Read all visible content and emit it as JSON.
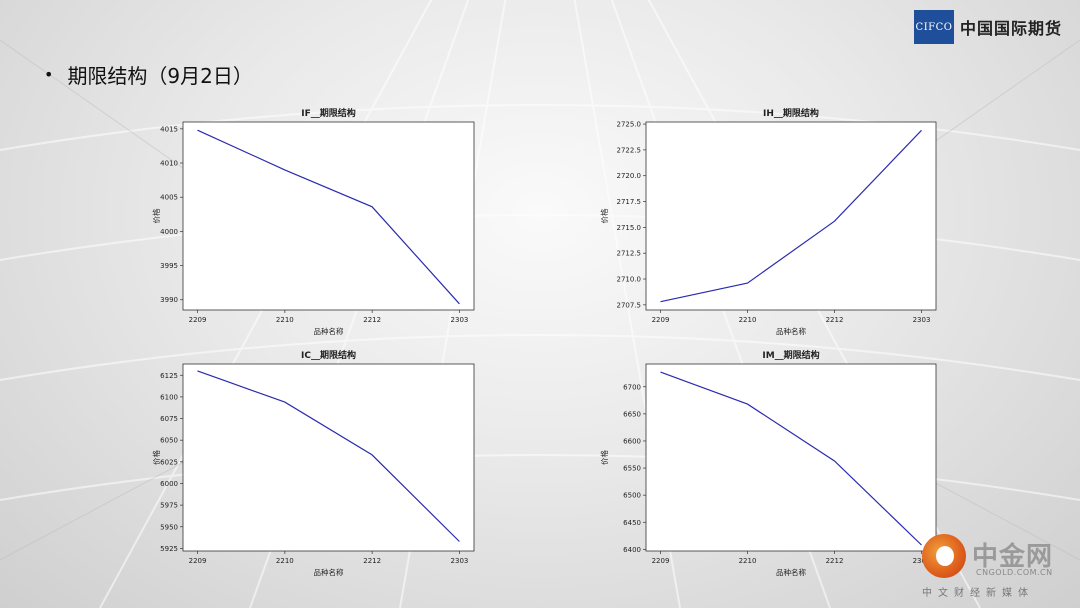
{
  "logo": {
    "box_text": "CIFCO",
    "name": "中国国际期货",
    "color": "#1f4e9a"
  },
  "slide": {
    "bullet": "•",
    "title": "期限结构（9月2日）"
  },
  "watermark": {
    "name": "中金网",
    "domain": "CNGOLD.COM.CN",
    "tagline": "中文财经新媒体"
  },
  "chart_data": [
    {
      "type": "line",
      "title": "IF__期限结构",
      "xlabel": "品种名称",
      "ylabel": "价格",
      "categories": [
        "2209",
        "2210",
        "2212",
        "2303"
      ],
      "series": [
        {
          "values": [
            4014.8,
            4009.0,
            4003.6,
            3989.4
          ]
        }
      ],
      "ylim": [
        3988.5,
        4016
      ],
      "yticks": [
        3990,
        3995,
        4000,
        4005,
        4010,
        4015
      ],
      "line_color": "#2b2bb0"
    },
    {
      "type": "line",
      "title": "IH__期限结构",
      "xlabel": "品种名称",
      "ylabel": "价格",
      "categories": [
        "2209",
        "2210",
        "2212",
        "2303"
      ],
      "series": [
        {
          "values": [
            2707.8,
            2709.6,
            2715.6,
            2724.4
          ]
        }
      ],
      "ylim": [
        2707.0,
        2725.2
      ],
      "yticks": [
        2707.5,
        2710.0,
        2712.5,
        2715.0,
        2717.5,
        2720.0,
        2722.5,
        2725.0
      ],
      "ytick_labels": [
        "2707.5",
        "2710.0",
        "2712.5",
        "2715.0",
        "2717.5",
        "2720.0",
        "2722.5",
        "2725.0"
      ],
      "line_color": "#2b2bb0"
    },
    {
      "type": "line",
      "title": "IC__期限结构",
      "xlabel": "品种名称",
      "ylabel": "价格",
      "categories": [
        "2209",
        "2210",
        "2212",
        "2303"
      ],
      "series": [
        {
          "values": [
            6130,
            6094,
            6033,
            5933
          ]
        }
      ],
      "ylim": [
        5922,
        6138
      ],
      "yticks": [
        5925,
        5950,
        5975,
        6000,
        6025,
        6050,
        6075,
        6100,
        6125
      ],
      "line_color": "#2b2bb0"
    },
    {
      "type": "line",
      "title": "IM__期限结构",
      "xlabel": "品种名称",
      "ylabel": "价格",
      "categories": [
        "2209",
        "2210",
        "2212",
        "2303"
      ],
      "series": [
        {
          "values": [
            6727,
            6668,
            6563,
            6408
          ]
        }
      ],
      "ylim": [
        6397,
        6742
      ],
      "yticks": [
        6400,
        6450,
        6500,
        6550,
        6600,
        6650,
        6700
      ],
      "line_color": "#2b2bb0"
    }
  ]
}
